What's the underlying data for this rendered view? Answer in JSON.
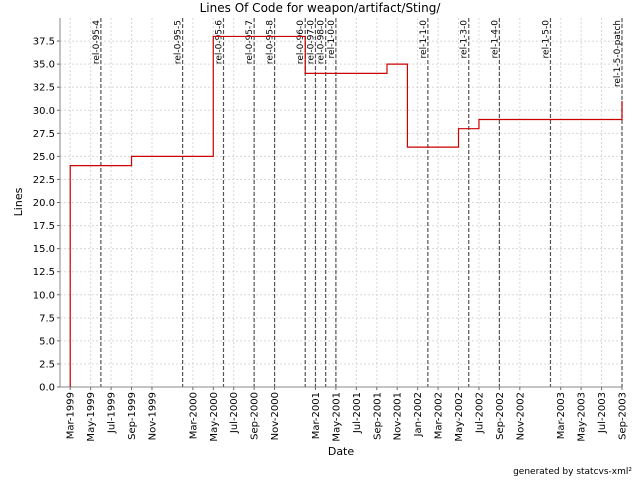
{
  "chart_data": {
    "type": "line",
    "step": true,
    "title": "Lines Of Code for weapon/artifact/Sting/",
    "xlabel": "Date",
    "ylabel": "Lines",
    "footer": "generated by statcvs-xml²",
    "color": "#cc0000",
    "x": [
      "1999-03",
      "1999-03",
      "1999-09",
      "2000-05",
      "2001-02",
      "2001-10",
      "2001-12",
      "2002-05",
      "2002-07",
      "2003-09"
    ],
    "values": [
      0,
      24,
      25,
      38,
      34,
      35,
      26,
      28,
      29,
      31
    ],
    "xlim": [
      "1999-02",
      "2003-09"
    ],
    "xticks": [
      {
        "value": "1999-03",
        "label": "Mar-1999"
      },
      {
        "value": "1999-05",
        "label": "May-1999"
      },
      {
        "value": "1999-07",
        "label": "Jul-1999"
      },
      {
        "value": "1999-09",
        "label": "Sep-1999"
      },
      {
        "value": "1999-11",
        "label": "Nov-1999"
      },
      {
        "value": "2000-03",
        "label": "Mar-2000"
      },
      {
        "value": "2000-05",
        "label": "May-2000"
      },
      {
        "value": "2000-07",
        "label": "Jul-2000"
      },
      {
        "value": "2000-09",
        "label": "Sep-2000"
      },
      {
        "value": "2000-11",
        "label": "Nov-2000"
      },
      {
        "value": "2001-03",
        "label": "Mar-2001"
      },
      {
        "value": "2001-05",
        "label": "May-2001"
      },
      {
        "value": "2001-07",
        "label": "Jul-2001"
      },
      {
        "value": "2001-09",
        "label": "Sep-2001"
      },
      {
        "value": "2001-11",
        "label": "Nov-2001"
      },
      {
        "value": "2002-01",
        "label": "Jan-2002"
      },
      {
        "value": "2002-03",
        "label": "Mar-2002"
      },
      {
        "value": "2002-05",
        "label": "May-2002"
      },
      {
        "value": "2002-07",
        "label": "Jul-2002"
      },
      {
        "value": "2002-09",
        "label": "Sep-2002"
      },
      {
        "value": "2002-11",
        "label": "Nov-2002"
      },
      {
        "value": "2003-03",
        "label": "Mar-2003"
      },
      {
        "value": "2003-05",
        "label": "May-2003"
      },
      {
        "value": "2003-07",
        "label": "Jul-2003"
      },
      {
        "value": "2003-09",
        "label": "Sep-2003"
      }
    ],
    "ylim": [
      0,
      40
    ],
    "yticks": [
      {
        "value": 0,
        "label": "0.0"
      },
      2.5,
      {
        "value": 5,
        "label": "5.0"
      },
      7.5,
      {
        "value": 10,
        "label": "10.0"
      },
      12.5,
      {
        "value": 15,
        "label": "15.0"
      },
      17.5,
      {
        "value": 20,
        "label": "20.0"
      },
      22.5,
      {
        "value": 25,
        "label": "25.0"
      },
      27.5,
      {
        "value": 30,
        "label": "30.0"
      },
      32.5,
      {
        "value": 35,
        "label": "35.0"
      },
      37.5
    ],
    "grid": true,
    "markers": [
      {
        "label": "rel-0-95-4",
        "x": "1999-06"
      },
      {
        "label": "rel-0-95-5",
        "x": "2000-02"
      },
      {
        "label": "rel-0-95-6",
        "x": "2000-06"
      },
      {
        "label": "rel-0-95-7",
        "x": "2000-09"
      },
      {
        "label": "rel-0-95-8",
        "x": "2000-11"
      },
      {
        "label": "rel-0-96-0",
        "x": "2001-02"
      },
      {
        "label": "rel-0-97-0",
        "x": "2001-03"
      },
      {
        "label": "rel-0-98-0",
        "x": "2001-04"
      },
      {
        "label": "rel-1-0-0",
        "x": "2001-05"
      },
      {
        "label": "rel-1-1-0",
        "x": "2002-02"
      },
      {
        "label": "rel-1-3-0",
        "x": "2002-06"
      },
      {
        "label": "rel-1-4-0",
        "x": "2002-09"
      },
      {
        "label": "rel-1-5-0",
        "x": "2003-02"
      },
      {
        "label": "rel-1-5-0-patch",
        "x": "2003-09"
      }
    ]
  }
}
